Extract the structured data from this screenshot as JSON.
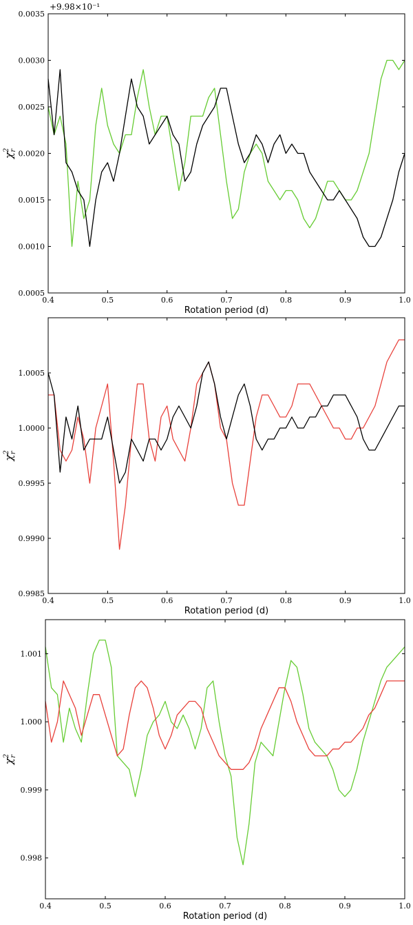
{
  "chart_data": [
    {
      "type": "line",
      "xlabel": "Rotation period (d)",
      "ylabel": "χ",
      "ylabel_sup": "2",
      "ylabel_sub": "r",
      "offset_text": "+9.98×10⁻¹",
      "xlim": [
        0.4,
        1.0
      ],
      "ylim": [
        0.0005,
        0.0035
      ],
      "xticks": [
        "0.4",
        "0.5",
        "0.6",
        "0.7",
        "0.8",
        "0.9",
        "1.0"
      ],
      "yticks": [
        "0.0005",
        "0.0010",
        "0.0015",
        "0.0020",
        "0.0025",
        "0.0030",
        "0.0035"
      ],
      "series": [
        {
          "color": "#66cc33",
          "x": [
            0.4,
            0.41,
            0.42,
            0.43,
            0.44,
            0.45,
            0.46,
            0.47,
            0.48,
            0.49,
            0.5,
            0.51,
            0.52,
            0.53,
            0.54,
            0.55,
            0.56,
            0.57,
            0.58,
            0.59,
            0.6,
            0.61,
            0.62,
            0.63,
            0.64,
            0.65,
            0.66,
            0.67,
            0.68,
            0.69,
            0.7,
            0.71,
            0.72,
            0.73,
            0.74,
            0.75,
            0.76,
            0.77,
            0.78,
            0.79,
            0.8,
            0.81,
            0.82,
            0.83,
            0.84,
            0.85,
            0.86,
            0.87,
            0.88,
            0.89,
            0.9,
            0.91,
            0.92,
            0.93,
            0.94,
            0.95,
            0.96,
            0.97,
            0.98,
            0.99,
            1.0
          ],
          "y": [
            0.0025,
            0.0022,
            0.0024,
            0.0021,
            0.001,
            0.0017,
            0.0013,
            0.0015,
            0.0023,
            0.0027,
            0.0023,
            0.0021,
            0.002,
            0.0022,
            0.0022,
            0.0026,
            0.0029,
            0.0025,
            0.0022,
            0.0024,
            0.0024,
            0.002,
            0.0016,
            0.0019,
            0.0024,
            0.0024,
            0.0024,
            0.0026,
            0.0027,
            0.0022,
            0.0017,
            0.0013,
            0.0014,
            0.0018,
            0.002,
            0.0021,
            0.002,
            0.0017,
            0.0016,
            0.0015,
            0.0016,
            0.0016,
            0.0015,
            0.0013,
            0.0012,
            0.0013,
            0.0015,
            0.0017,
            0.0017,
            0.0016,
            0.0015,
            0.0015,
            0.0016,
            0.0018,
            0.002,
            0.0024,
            0.0028,
            0.003,
            0.003,
            0.0029,
            0.003
          ]
        },
        {
          "color": "#000000",
          "x": [
            0.4,
            0.41,
            0.42,
            0.43,
            0.44,
            0.45,
            0.46,
            0.47,
            0.48,
            0.49,
            0.5,
            0.51,
            0.52,
            0.53,
            0.54,
            0.55,
            0.56,
            0.57,
            0.58,
            0.59,
            0.6,
            0.61,
            0.62,
            0.63,
            0.64,
            0.65,
            0.66,
            0.67,
            0.68,
            0.69,
            0.7,
            0.71,
            0.72,
            0.73,
            0.74,
            0.75,
            0.76,
            0.77,
            0.78,
            0.79,
            0.8,
            0.81,
            0.82,
            0.83,
            0.84,
            0.85,
            0.86,
            0.87,
            0.88,
            0.89,
            0.9,
            0.91,
            0.92,
            0.93,
            0.94,
            0.95,
            0.96,
            0.97,
            0.98,
            0.99,
            1.0
          ],
          "y": [
            0.0028,
            0.0022,
            0.0029,
            0.0019,
            0.0018,
            0.0016,
            0.0015,
            0.001,
            0.0015,
            0.0018,
            0.0019,
            0.0017,
            0.002,
            0.0024,
            0.0028,
            0.0025,
            0.0024,
            0.0021,
            0.0022,
            0.0023,
            0.0024,
            0.0022,
            0.0021,
            0.0017,
            0.0018,
            0.0021,
            0.0023,
            0.0024,
            0.0025,
            0.0027,
            0.0027,
            0.0024,
            0.0021,
            0.0019,
            0.002,
            0.0022,
            0.0021,
            0.0019,
            0.0021,
            0.0022,
            0.002,
            0.0021,
            0.002,
            0.002,
            0.0018,
            0.0017,
            0.0016,
            0.0015,
            0.0015,
            0.0016,
            0.0015,
            0.0014,
            0.0013,
            0.0011,
            0.001,
            0.001,
            0.0011,
            0.0013,
            0.0015,
            0.0018,
            0.002
          ]
        }
      ]
    },
    {
      "type": "line",
      "xlabel": "Rotation period (d)",
      "ylabel": "χ",
      "ylabel_sup": "2",
      "ylabel_sub": "r",
      "xlim": [
        0.4,
        1.0
      ],
      "ylim": [
        0.9985,
        1.001
      ],
      "xticks": [
        "0.4",
        "0.5",
        "0.6",
        "0.7",
        "0.8",
        "0.9",
        "1.0"
      ],
      "yticks": [
        "0.9985",
        "0.9990",
        "0.9995",
        "1.0000",
        "1.0005"
      ],
      "series": [
        {
          "color": "#e8403a",
          "x": [
            0.4,
            0.41,
            0.42,
            0.43,
            0.44,
            0.45,
            0.46,
            0.47,
            0.48,
            0.49,
            0.5,
            0.51,
            0.52,
            0.53,
            0.54,
            0.55,
            0.56,
            0.57,
            0.58,
            0.59,
            0.6,
            0.61,
            0.62,
            0.63,
            0.64,
            0.65,
            0.66,
            0.67,
            0.68,
            0.69,
            0.7,
            0.71,
            0.72,
            0.73,
            0.74,
            0.75,
            0.76,
            0.77,
            0.78,
            0.79,
            0.8,
            0.81,
            0.82,
            0.83,
            0.84,
            0.85,
            0.86,
            0.87,
            0.88,
            0.89,
            0.9,
            0.91,
            0.92,
            0.93,
            0.94,
            0.95,
            0.96,
            0.97,
            0.98,
            0.99,
            1.0
          ],
          "y": [
            1.0003,
            1.0003,
            0.9998,
            0.9997,
            0.9998,
            1.0001,
            0.9999,
            0.9995,
            1.0,
            1.0002,
            1.0004,
            0.9997,
            0.9989,
            0.9993,
            0.9999,
            1.0004,
            1.0004,
            0.9999,
            0.9997,
            1.0001,
            1.0002,
            0.9999,
            0.9998,
            0.9997,
            1.0,
            1.0004,
            1.0005,
            1.0006,
            1.0004,
            1.0,
            0.9999,
            0.9995,
            0.9993,
            0.9993,
            0.9997,
            1.0001,
            1.0003,
            1.0003,
            1.0002,
            1.0001,
            1.0001,
            1.0002,
            1.0004,
            1.0004,
            1.0004,
            1.0003,
            1.0002,
            1.0001,
            1.0,
            1.0,
            0.9999,
            0.9999,
            1.0,
            1.0,
            1.0001,
            1.0002,
            1.0004,
            1.0006,
            1.0007,
            1.0008,
            1.0008
          ]
        },
        {
          "color": "#000000",
          "x": [
            0.4,
            0.41,
            0.42,
            0.43,
            0.44,
            0.45,
            0.46,
            0.47,
            0.48,
            0.49,
            0.5,
            0.51,
            0.52,
            0.53,
            0.54,
            0.55,
            0.56,
            0.57,
            0.58,
            0.59,
            0.6,
            0.61,
            0.62,
            0.63,
            0.64,
            0.65,
            0.66,
            0.67,
            0.68,
            0.69,
            0.7,
            0.71,
            0.72,
            0.73,
            0.74,
            0.75,
            0.76,
            0.77,
            0.78,
            0.79,
            0.8,
            0.81,
            0.82,
            0.83,
            0.84,
            0.85,
            0.86,
            0.87,
            0.88,
            0.89,
            0.9,
            0.91,
            0.92,
            0.93,
            0.94,
            0.95,
            0.96,
            0.97,
            0.98,
            0.99,
            1.0
          ],
          "y": [
            1.0005,
            1.0003,
            0.9996,
            1.0001,
            0.9999,
            1.0002,
            0.9998,
            0.9999,
            0.9999,
            0.9999,
            1.0001,
            0.9998,
            0.9995,
            0.9996,
            0.9999,
            0.9998,
            0.9997,
            0.9999,
            0.9999,
            0.9998,
            0.9999,
            1.0001,
            1.0002,
            1.0001,
            1.0,
            1.0002,
            1.0005,
            1.0006,
            1.0004,
            1.0001,
            0.9999,
            1.0001,
            1.0003,
            1.0004,
            1.0002,
            0.9999,
            0.9998,
            0.9999,
            0.9999,
            1.0,
            1.0,
            1.0001,
            1.0,
            1.0,
            1.0001,
            1.0001,
            1.0002,
            1.0002,
            1.0003,
            1.0003,
            1.0003,
            1.0002,
            1.0001,
            0.9999,
            0.9998,
            0.9998,
            0.9999,
            1.0,
            1.0001,
            1.0002,
            1.0002
          ]
        }
      ]
    },
    {
      "type": "line",
      "xlabel": "Rotation period (d)",
      "ylabel": "χ",
      "ylabel_sup": "2",
      "ylabel_sub": "r",
      "xlim": [
        0.4,
        1.0
      ],
      "ylim": [
        0.9974,
        1.0015
      ],
      "xticks": [
        "0.4",
        "0.5",
        "0.6",
        "0.7",
        "0.8",
        "0.9",
        "1.0"
      ],
      "yticks": [
        "0.998",
        "0.999",
        "1.000",
        "1.001"
      ],
      "series": [
        {
          "color": "#66cc33",
          "x": [
            0.4,
            0.41,
            0.42,
            0.43,
            0.44,
            0.45,
            0.46,
            0.47,
            0.48,
            0.49,
            0.5,
            0.51,
            0.52,
            0.53,
            0.54,
            0.55,
            0.56,
            0.57,
            0.58,
            0.59,
            0.6,
            0.61,
            0.62,
            0.63,
            0.64,
            0.65,
            0.66,
            0.67,
            0.68,
            0.69,
            0.7,
            0.71,
            0.72,
            0.73,
            0.74,
            0.75,
            0.76,
            0.77,
            0.78,
            0.79,
            0.8,
            0.81,
            0.82,
            0.83,
            0.84,
            0.85,
            0.86,
            0.87,
            0.88,
            0.89,
            0.9,
            0.91,
            0.92,
            0.93,
            0.94,
            0.95,
            0.96,
            0.97,
            0.98,
            0.99,
            1.0
          ],
          "y": [
            1.0011,
            1.0005,
            1.0004,
            0.9997,
            1.0002,
            0.9999,
            0.9997,
            1.0004,
            1.001,
            1.0012,
            1.0012,
            1.0008,
            0.9995,
            0.9994,
            0.9993,
            0.9989,
            0.9993,
            0.9998,
            1.0,
            1.0001,
            1.0003,
            1.0,
            0.9999,
            1.0001,
            0.9999,
            0.9996,
            0.9999,
            1.0005,
            1.0006,
            1.0,
            0.9995,
            0.9992,
            0.9983,
            0.9979,
            0.9985,
            0.9994,
            0.9997,
            0.9996,
            0.9995,
            1.0,
            1.0005,
            1.0009,
            1.0008,
            1.0004,
            0.9999,
            0.9997,
            0.9996,
            0.9995,
            0.9993,
            0.999,
            0.9989,
            0.999,
            0.9993,
            0.9997,
            1.0,
            1.0003,
            1.0006,
            1.0008,
            1.0009,
            1.001,
            1.0011
          ]
        },
        {
          "color": "#e8403a",
          "x": [
            0.4,
            0.41,
            0.42,
            0.43,
            0.44,
            0.45,
            0.46,
            0.47,
            0.48,
            0.49,
            0.5,
            0.51,
            0.52,
            0.53,
            0.54,
            0.55,
            0.56,
            0.57,
            0.58,
            0.59,
            0.6,
            0.61,
            0.62,
            0.63,
            0.64,
            0.65,
            0.66,
            0.67,
            0.68,
            0.69,
            0.7,
            0.71,
            0.72,
            0.73,
            0.74,
            0.75,
            0.76,
            0.77,
            0.78,
            0.79,
            0.8,
            0.81,
            0.82,
            0.83,
            0.84,
            0.85,
            0.86,
            0.87,
            0.88,
            0.89,
            0.9,
            0.91,
            0.92,
            0.93,
            0.94,
            0.95,
            0.96,
            0.97,
            0.98,
            0.99,
            1.0
          ],
          "y": [
            1.0003,
            0.9997,
            1.0,
            1.0006,
            1.0004,
            1.0002,
            0.9998,
            1.0001,
            1.0004,
            1.0004,
            1.0001,
            0.9998,
            0.9995,
            0.9996,
            1.0001,
            1.0005,
            1.0006,
            1.0005,
            1.0002,
            0.9998,
            0.9996,
            0.9998,
            1.0001,
            1.0002,
            1.0003,
            1.0003,
            1.0002,
            0.9999,
            0.9997,
            0.9995,
            0.9994,
            0.9993,
            0.9993,
            0.9993,
            0.9994,
            0.9996,
            0.9999,
            1.0001,
            1.0003,
            1.0005,
            1.0005,
            1.0003,
            1.0,
            0.9998,
            0.9996,
            0.9995,
            0.9995,
            0.9995,
            0.9996,
            0.9996,
            0.9997,
            0.9997,
            0.9998,
            0.9999,
            1.0001,
            1.0002,
            1.0004,
            1.0006,
            1.0006,
            1.0006,
            1.0006
          ]
        }
      ]
    }
  ]
}
